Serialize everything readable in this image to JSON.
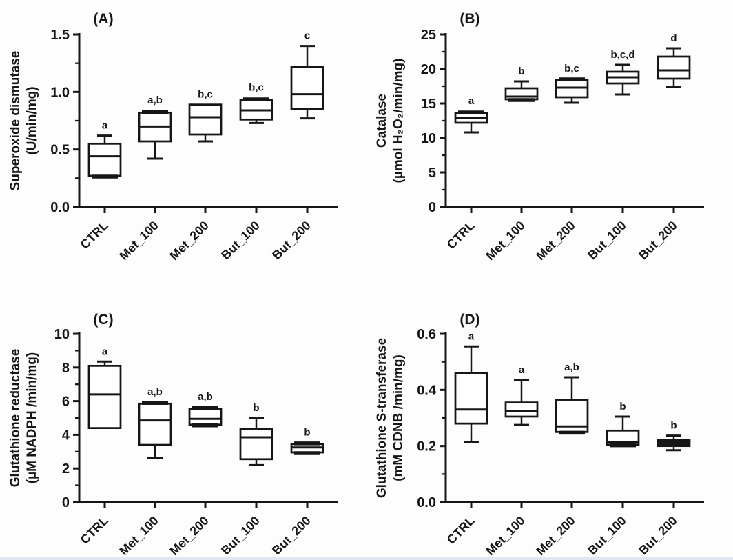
{
  "figure": {
    "background": "#fdfdfe",
    "bottom_strip_color": "#e0e7f2",
    "ink_color": "#161616"
  },
  "chart_data": [
    {
      "type": "box",
      "panel_label": "(A)",
      "ylabel_line1": "Superoxide dismutase",
      "ylabel_line2": "(U/min/mg)",
      "ylim": [
        0,
        1.5
      ],
      "ytick_values": [
        0,
        0.5,
        1.0,
        1.5
      ],
      "ytick_labels": [
        "0.0",
        "0.5",
        "1.0",
        "1.5"
      ],
      "minor_ticks": true,
      "grid": false,
      "categories": [
        "CTRL",
        "Met_100",
        "Met_200",
        "But_100",
        "But_200"
      ],
      "boxes": [
        {
          "category": "CTRL",
          "letter": "a",
          "min": 0.26,
          "q1": 0.27,
          "median": 0.44,
          "q3": 0.55,
          "max": 0.62
        },
        {
          "category": "Met_100",
          "letter": "a,b",
          "min": 0.42,
          "q1": 0.57,
          "median": 0.7,
          "q3": 0.82,
          "max": 0.84
        },
        {
          "category": "Met_200",
          "letter": "b,c",
          "min": 0.57,
          "q1": 0.63,
          "median": 0.78,
          "q3": 0.89,
          "max": 0.89
        },
        {
          "category": "But_100",
          "letter": "b,c",
          "min": 0.73,
          "q1": 0.76,
          "median": 0.84,
          "q3": 0.93,
          "max": 0.95
        },
        {
          "category": "But_200",
          "letter": "c",
          "min": 0.77,
          "q1": 0.85,
          "median": 0.98,
          "q3": 1.22,
          "max": 1.4
        }
      ]
    },
    {
      "type": "box",
      "panel_label": "(B)",
      "ylabel_line1": "Catalase",
      "ylabel_line2": "(µmol H₂O₂/min/mg)",
      "ylim": [
        0,
        25
      ],
      "ytick_values": [
        0,
        5,
        10,
        15,
        20,
        25
      ],
      "ytick_labels": [
        "0",
        "5",
        "10",
        "15",
        "20",
        "25"
      ],
      "minor_ticks": true,
      "grid": false,
      "categories": [
        "CTRL",
        "Met_100",
        "Met_200",
        "But_100",
        "But_200"
      ],
      "boxes": [
        {
          "category": "CTRL",
          "letter": "a",
          "min": 10.8,
          "q1": 12.2,
          "median": 12.9,
          "q3": 13.6,
          "max": 13.9
        },
        {
          "category": "Met_100",
          "letter": "b",
          "min": 15.4,
          "q1": 15.6,
          "median": 16.0,
          "q3": 17.2,
          "max": 18.2
        },
        {
          "category": "Met_200",
          "letter": "b,c",
          "min": 15.1,
          "q1": 15.9,
          "median": 17.3,
          "q3": 18.4,
          "max": 18.6
        },
        {
          "category": "But_100",
          "letter": "b,c,d",
          "min": 16.3,
          "q1": 17.9,
          "median": 18.8,
          "q3": 19.6,
          "max": 20.6
        },
        {
          "category": "But_200",
          "letter": "d",
          "min": 17.4,
          "q1": 18.6,
          "median": 19.8,
          "q3": 21.8,
          "max": 23.0
        }
      ]
    },
    {
      "type": "box",
      "panel_label": "(C)",
      "ylabel_line1": "Glutathione reductase",
      "ylabel_line2": "(µM NADPH /min/mg)",
      "ylim": [
        0,
        10
      ],
      "ytick_values": [
        0,
        2,
        4,
        6,
        8,
        10
      ],
      "ytick_labels": [
        "0",
        "2",
        "4",
        "6",
        "8",
        "10"
      ],
      "minor_ticks": true,
      "grid": false,
      "categories": [
        "CTRL",
        "Met_100",
        "Met_200",
        "But_100",
        "But_200"
      ],
      "boxes": [
        {
          "category": "CTRL",
          "letter": "a",
          "min": 4.4,
          "q1": 4.4,
          "median": 6.4,
          "q3": 8.1,
          "max": 8.35
        },
        {
          "category": "Met_100",
          "letter": "a,b",
          "min": 2.6,
          "q1": 3.4,
          "median": 4.85,
          "q3": 5.85,
          "max": 5.95
        },
        {
          "category": "Met_200",
          "letter": "a,b",
          "min": 4.5,
          "q1": 4.6,
          "median": 4.95,
          "q3": 5.55,
          "max": 5.65
        },
        {
          "category": "But_100",
          "letter": "b",
          "min": 2.2,
          "q1": 2.55,
          "median": 3.85,
          "q3": 4.35,
          "max": 5.0
        },
        {
          "category": "But_200",
          "letter": "b",
          "min": 2.85,
          "q1": 2.95,
          "median": 3.25,
          "q3": 3.45,
          "max": 3.55
        }
      ]
    },
    {
      "type": "box",
      "panel_label": "(D)",
      "ylabel_line1": "Glutathione S-transferase",
      "ylabel_line2": "(mM CDNB /min/mg)",
      "ylim": [
        0,
        0.6
      ],
      "ytick_values": [
        0,
        0.2,
        0.4,
        0.6
      ],
      "ytick_labels": [
        "0.0",
        "0.2",
        "0.4",
        "0.6"
      ],
      "minor_ticks": true,
      "grid": false,
      "categories": [
        "CTRL",
        "Met_100",
        "Met_200",
        "But_100",
        "But_200"
      ],
      "boxes": [
        {
          "category": "CTRL",
          "letter": "a",
          "min": 0.215,
          "q1": 0.28,
          "median": 0.33,
          "q3": 0.46,
          "max": 0.555
        },
        {
          "category": "Met_100",
          "letter": "a",
          "min": 0.275,
          "q1": 0.305,
          "median": 0.325,
          "q3": 0.355,
          "max": 0.435
        },
        {
          "category": "Met_200",
          "letter": "a,b",
          "min": 0.245,
          "q1": 0.25,
          "median": 0.27,
          "q3": 0.365,
          "max": 0.445
        },
        {
          "category": "But_100",
          "letter": "b",
          "min": 0.2,
          "q1": 0.205,
          "median": 0.215,
          "q3": 0.255,
          "max": 0.305
        },
        {
          "category": "But_200",
          "letter": "b",
          "min": 0.185,
          "q1": 0.2,
          "median": 0.21,
          "q3": 0.222,
          "max": 0.237
        }
      ]
    }
  ]
}
